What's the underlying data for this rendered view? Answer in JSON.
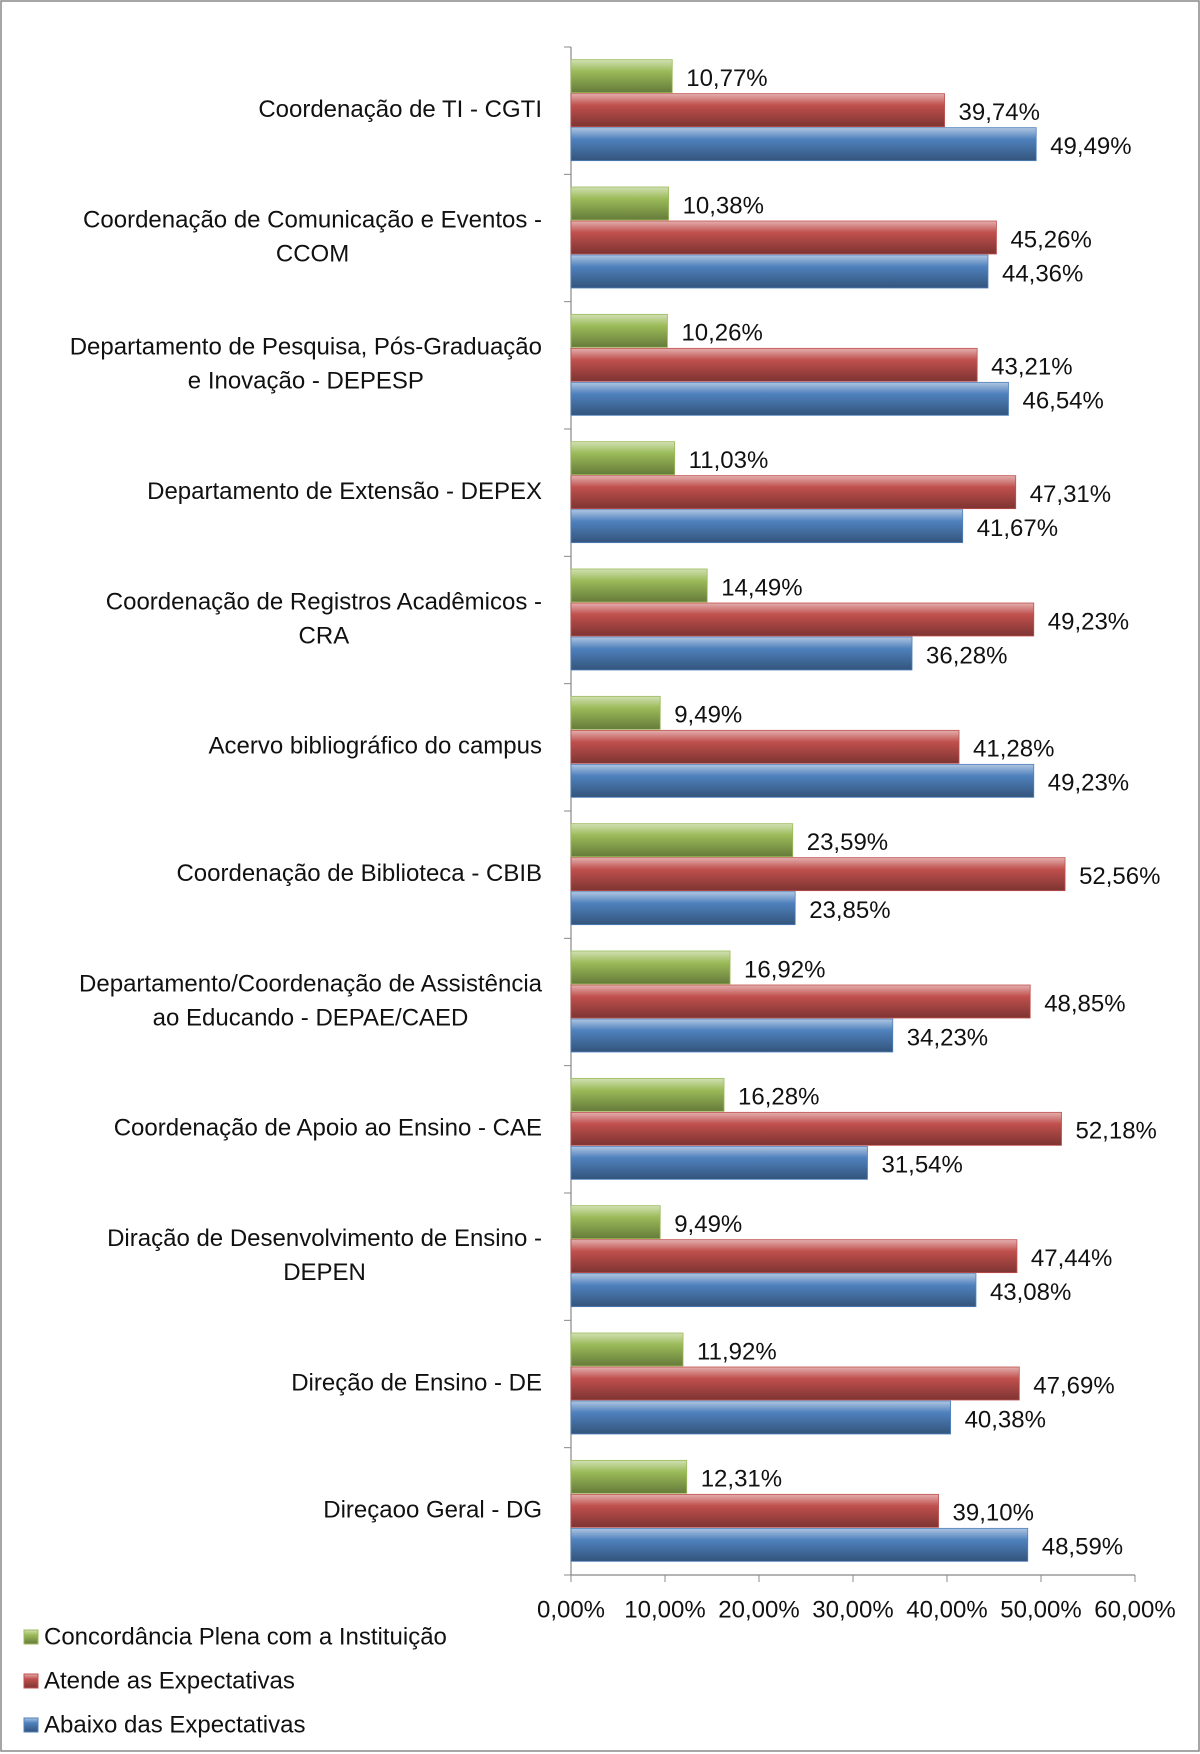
{
  "chart_data": {
    "type": "bar",
    "orientation": "horizontal",
    "categories": [
      [
        "Coordenação de TI - CGTI"
      ],
      [
        "Coordenação de Comunicação e Eventos -",
        "CCOM"
      ],
      [
        "Departamento de Pesquisa, Pós-Graduação",
        "e Inovação - DEPESP"
      ],
      [
        "Departamento de Extensão - DEPEX"
      ],
      [
        "Coordenação de Registros Acadêmicos -",
        "CRA"
      ],
      [
        "Acervo bibliográfico do campus"
      ],
      [
        "Coordenação de Biblioteca - CBIB"
      ],
      [
        "Departamento/Coordenação de Assistência",
        "ao Educando - DEPAE/CAED"
      ],
      [
        "Coordenação de Apoio ao Ensino - CAE"
      ],
      [
        "Diração de Desenvolvimento de Ensino -",
        "DEPEN"
      ],
      [
        "Direção de Ensino - DE"
      ],
      [
        "Direçaoo Geral - DG"
      ]
    ],
    "series": [
      {
        "name": "Concordância Plena com a Instituição",
        "color": "#9bbb59",
        "values": [
          10.77,
          10.38,
          10.26,
          11.03,
          14.49,
          9.49,
          23.59,
          16.92,
          16.28,
          9.49,
          11.92,
          12.31
        ],
        "value_labels": [
          "10,77%",
          "10,38%",
          "10,26%",
          "11,03%",
          "14,49%",
          "9,49%",
          "23,59%",
          "16,92%",
          "16,28%",
          "9,49%",
          "11,92%",
          "12,31%"
        ]
      },
      {
        "name": "Atende as Expectativas",
        "color": "#c0504d",
        "values": [
          39.74,
          45.26,
          43.21,
          47.31,
          49.23,
          41.28,
          52.56,
          48.85,
          52.18,
          47.44,
          47.69,
          39.1
        ],
        "value_labels": [
          "39,74%",
          "45,26%",
          "43,21%",
          "47,31%",
          "49,23%",
          "41,28%",
          "52,56%",
          "48,85%",
          "52,18%",
          "47,44%",
          "47,69%",
          "39,10%"
        ]
      },
      {
        "name": "Abaixo das Expectativas",
        "color": "#4f81bd",
        "values": [
          49.49,
          44.36,
          46.54,
          41.67,
          36.28,
          49.23,
          23.85,
          34.23,
          31.54,
          43.08,
          40.38,
          48.59
        ],
        "value_labels": [
          "49,49%",
          "44,36%",
          "46,54%",
          "41,67%",
          "36,28%",
          "49,23%",
          "23,85%",
          "34,23%",
          "31,54%",
          "43,08%",
          "40,38%",
          "48,59%"
        ]
      }
    ],
    "xlim": [
      0,
      60
    ],
    "xticks": [
      {
        "value": 0,
        "label": "0,00%"
      },
      {
        "value": 10,
        "label": "10,00%"
      },
      {
        "value": 20,
        "label": "20,00%"
      },
      {
        "value": 30,
        "label": "30,00%"
      },
      {
        "value": 40,
        "label": "40,00%"
      },
      {
        "value": 50,
        "label": "50,00%"
      },
      {
        "value": 60,
        "label": "60,00%"
      }
    ],
    "legend": "bottom-left"
  }
}
